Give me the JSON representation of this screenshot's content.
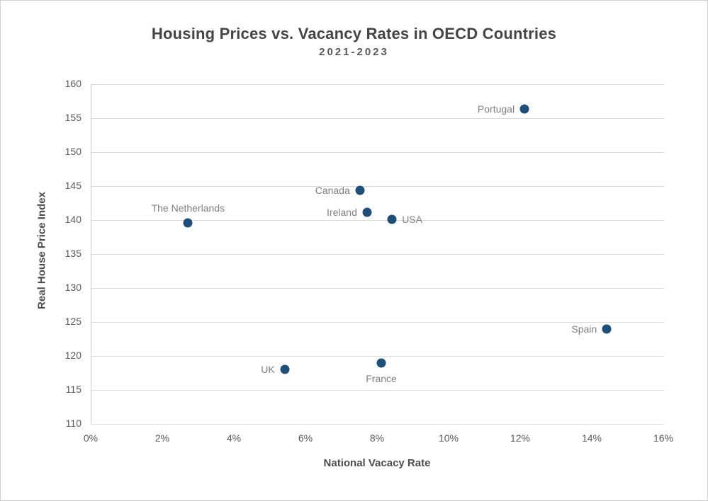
{
  "chart_data": {
    "type": "scatter",
    "title": "Housing Prices vs. Vacancy Rates in OECD Countries",
    "subtitle": "2021-2023",
    "xlabel": "National Vacacy Rate",
    "ylabel": "Real House Price Index",
    "xlim": [
      0,
      16
    ],
    "ylim": [
      110,
      160
    ],
    "x_ticks": [
      0,
      2,
      4,
      6,
      8,
      10,
      12,
      14,
      16
    ],
    "x_tick_labels": [
      "0%",
      "2%",
      "4%",
      "6%",
      "8%",
      "10%",
      "12%",
      "14%",
      "16%"
    ],
    "y_ticks": [
      110,
      115,
      120,
      125,
      130,
      135,
      140,
      145,
      150,
      155,
      160
    ],
    "y_tick_labels": [
      "110",
      "115",
      "120",
      "125",
      "130",
      "135",
      "140",
      "145",
      "150",
      "155",
      "160"
    ],
    "grid": "horizontal",
    "legend": "none",
    "points": [
      {
        "label": "Portugal",
        "x": 12.1,
        "y": 156.4,
        "label_position": "left"
      },
      {
        "label": "Canada",
        "x": 7.5,
        "y": 144.4,
        "label_position": "left"
      },
      {
        "label": "Ireland",
        "x": 7.7,
        "y": 141.1,
        "label_position": "left"
      },
      {
        "label": "USA",
        "x": 8.4,
        "y": 140.1,
        "label_position": "right"
      },
      {
        "label": "The Netherlands",
        "x": 2.7,
        "y": 139.6,
        "label_position": "above"
      },
      {
        "label": "Spain",
        "x": 14.4,
        "y": 124.0,
        "label_position": "left"
      },
      {
        "label": "UK",
        "x": 5.4,
        "y": 118.0,
        "label_position": "left"
      },
      {
        "label": "France",
        "x": 8.1,
        "y": 119.0,
        "label_position": "below"
      }
    ]
  },
  "colors": {
    "marker": "#1F4E79",
    "grid": "#DADADA",
    "axis_line": "#C6C6C6",
    "title_text": "#454545",
    "subtitle_text": "#595959",
    "tick_text": "#595959",
    "axis_title_text": "#4D4D4D",
    "point_label_text": "#7F7F7F",
    "background": "#FFFFFF",
    "border": "#CFCFCF"
  }
}
